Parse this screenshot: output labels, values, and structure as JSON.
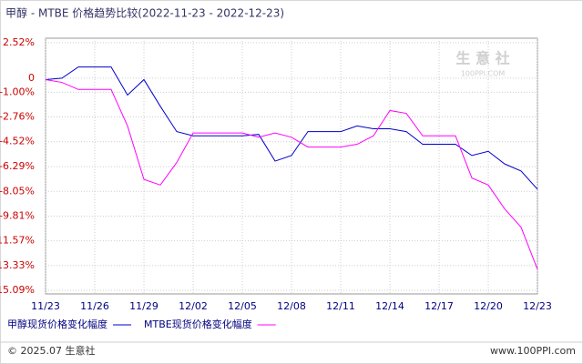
{
  "chart_data": {
    "type": "line",
    "title": "甲醇 - MTBE 价格趋势比较(2022-11-23 - 2022-12-23)",
    "categories": [
      "11/23",
      null,
      null,
      "11/26",
      null,
      null,
      "11/29",
      null,
      null,
      "12/02",
      null,
      null,
      "12/05",
      null,
      null,
      "12/08",
      null,
      null,
      "12/11",
      null,
      null,
      "12/14",
      null,
      null,
      "12/17",
      null,
      null,
      "12/20",
      null,
      null,
      "12/23"
    ],
    "series": [
      {
        "name": "甲醇现货价格变化幅度",
        "color": "#0000cc",
        "values": [
          -0.1,
          0.0,
          0.8,
          0.8,
          0.8,
          -1.2,
          -0.1,
          -2.0,
          -3.8,
          -4.1,
          -4.1,
          -4.1,
          -4.1,
          -4.0,
          -5.9,
          -5.5,
          -3.8,
          -3.8,
          -3.8,
          -3.4,
          -3.6,
          -3.6,
          -3.8,
          -4.7,
          -4.7,
          -4.7,
          -5.5,
          -5.2,
          -6.1,
          -6.6,
          -7.9
        ]
      },
      {
        "name": "MTBE现货价格变化幅度",
        "color": "#ff00ff",
        "values": [
          -0.1,
          -0.3,
          -0.8,
          -0.8,
          -0.8,
          -3.4,
          -7.2,
          -7.6,
          -6.0,
          -3.9,
          -3.9,
          -3.9,
          -3.9,
          -4.2,
          -3.9,
          -4.2,
          -4.9,
          -4.9,
          -4.9,
          -4.7,
          -4.1,
          -2.3,
          -2.5,
          -4.1,
          -4.1,
          -4.1,
          -7.1,
          -7.6,
          -9.3,
          -10.6,
          -13.6
        ]
      }
    ],
    "ylim": [
      -15.09,
      2.52
    ],
    "yticks": [
      {
        "value": 2.52,
        "label": "2.52%"
      },
      0,
      {
        "value": -1.0,
        "label": "-1.00%"
      },
      {
        "value": -2.76,
        "label": "-2.76%"
      },
      {
        "value": -4.52,
        "label": "-4.52%"
      },
      {
        "value": -6.29,
        "label": "-6.29%"
      },
      {
        "value": -8.05,
        "label": "-8.05%"
      },
      {
        "value": -9.81,
        "label": "-9.81%"
      },
      {
        "value": -11.57,
        "label": "-11.57%"
      },
      {
        "value": -13.33,
        "label": "-13.33%"
      },
      {
        "value": -15.09,
        "label": "-15.09%"
      }
    ],
    "grid": true,
    "watermark": [
      "生 意 社",
      "100PPI.COM"
    ],
    "footer": {
      "left": "© 2025.07 生意社",
      "right": "www.100PPI.com"
    }
  }
}
